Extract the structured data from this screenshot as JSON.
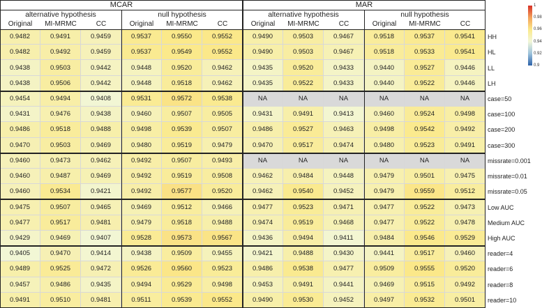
{
  "chart_data": {
    "type": "heatmap",
    "groups": [
      {
        "label": "MCAR",
        "subgroups": [
          "alternative hypothesis",
          "null hypothesis"
        ]
      },
      {
        "label": "MAR",
        "subgroups": [
          "alternative hypothesis",
          "null hypothesis"
        ]
      }
    ],
    "methods": [
      "Original",
      "MI-MRMC",
      "CC"
    ],
    "row_labels": [
      "HH",
      "HL",
      "LL",
      "LH",
      "case=50",
      "case=100",
      "case=200",
      "case=300",
      "missrate=0.001",
      "missrate=0.01",
      "missrate=0.05",
      "Low AUC",
      "Medium AUC",
      "High AUC",
      "reader=4",
      "reader=6",
      "reader=8",
      "reader=10"
    ],
    "row_blocks": [
      4,
      4,
      3,
      3,
      4
    ],
    "values": [
      [
        "0.9482",
        "0.9491",
        "0.9459",
        "0.9537",
        "0.9550",
        "0.9552",
        "0.9490",
        "0.9503",
        "0.9467",
        "0.9518",
        "0.9537",
        "0.9541"
      ],
      [
        "0.9482",
        "0.9492",
        "0.9459",
        "0.9537",
        "0.9549",
        "0.9552",
        "0.9490",
        "0.9503",
        "0.9467",
        "0.9518",
        "0.9533",
        "0.9541"
      ],
      [
        "0.9438",
        "0.9503",
        "0.9442",
        "0.9448",
        "0.9520",
        "0.9462",
        "0.9435",
        "0.9520",
        "0.9433",
        "0.9440",
        "0.9527",
        "0.9446"
      ],
      [
        "0.9438",
        "0.9506",
        "0.9442",
        "0.9448",
        "0.9518",
        "0.9462",
        "0.9435",
        "0.9522",
        "0.9433",
        "0.9440",
        "0.9522",
        "0.9446"
      ],
      [
        "0.9454",
        "0.9494",
        "0.9408",
        "0.9531",
        "0.9572",
        "0.9538",
        "NA",
        "NA",
        "NA",
        "NA",
        "NA",
        "NA"
      ],
      [
        "0.9431",
        "0.9476",
        "0.9438",
        "0.9460",
        "0.9507",
        "0.9505",
        "0.9431",
        "0.9491",
        "0.9413",
        "0.9460",
        "0.9524",
        "0.9498"
      ],
      [
        "0.9486",
        "0.9518",
        "0.9488",
        "0.9498",
        "0.9539",
        "0.9507",
        "0.9486",
        "0.9527",
        "0.9463",
        "0.9498",
        "0.9542",
        "0.9492"
      ],
      [
        "0.9470",
        "0.9503",
        "0.9469",
        "0.9480",
        "0.9519",
        "0.9479",
        "0.9470",
        "0.9517",
        "0.9474",
        "0.9480",
        "0.9523",
        "0.9491"
      ],
      [
        "0.9460",
        "0.9473",
        "0.9462",
        "0.9492",
        "0.9507",
        "0.9493",
        "NA",
        "NA",
        "NA",
        "NA",
        "NA",
        "NA"
      ],
      [
        "0.9460",
        "0.9487",
        "0.9469",
        "0.9492",
        "0.9519",
        "0.9508",
        "0.9462",
        "0.9484",
        "0.9448",
        "0.9479",
        "0.9501",
        "0.9475"
      ],
      [
        "0.9460",
        "0.9534",
        "0.9421",
        "0.9492",
        "0.9577",
        "0.9520",
        "0.9462",
        "0.9540",
        "0.9452",
        "0.9479",
        "0.9559",
        "0.9512"
      ],
      [
        "0.9475",
        "0.9507",
        "0.9465",
        "0.9469",
        "0.9512",
        "0.9466",
        "0.9477",
        "0.9523",
        "0.9471",
        "0.9477",
        "0.9522",
        "0.9473"
      ],
      [
        "0.9477",
        "0.9517",
        "0.9481",
        "0.9479",
        "0.9518",
        "0.9488",
        "0.9474",
        "0.9519",
        "0.9468",
        "0.9477",
        "0.9522",
        "0.9478"
      ],
      [
        "0.9429",
        "0.9469",
        "0.9407",
        "0.9528",
        "0.9573",
        "0.9567",
        "0.9436",
        "0.9494",
        "0.9411",
        "0.9484",
        "0.9546",
        "0.9529"
      ],
      [
        "0.9405",
        "0.9470",
        "0.9414",
        "0.9438",
        "0.9509",
        "0.9455",
        "0.9421",
        "0.9488",
        "0.9430",
        "0.9441",
        "0.9517",
        "0.9460"
      ],
      [
        "0.9489",
        "0.9525",
        "0.9472",
        "0.9526",
        "0.9560",
        "0.9523",
        "0.9486",
        "0.9538",
        "0.9477",
        "0.9509",
        "0.9555",
        "0.9520"
      ],
      [
        "0.9457",
        "0.9486",
        "0.9435",
        "0.9494",
        "0.9529",
        "0.9498",
        "0.9453",
        "0.9491",
        "0.9441",
        "0.9469",
        "0.9515",
        "0.9492"
      ],
      [
        "0.9491",
        "0.9510",
        "0.9481",
        "0.9511",
        "0.9539",
        "0.9552",
        "0.9490",
        "0.9530",
        "0.9452",
        "0.9497",
        "0.9532",
        "0.9501"
      ]
    ],
    "color_scale": {
      "min": 0.9,
      "max": 1.0,
      "ticks": [
        "1",
        "0.98",
        "0.96",
        "0.94",
        "0.92",
        "0.9"
      ],
      "stops": [
        "#2c62a8",
        "#9ec3dc",
        "#f2f7d8",
        "#fbe98a",
        "#f3a25a",
        "#d73027"
      ]
    },
    "na_color": "#d9d9d9"
  }
}
